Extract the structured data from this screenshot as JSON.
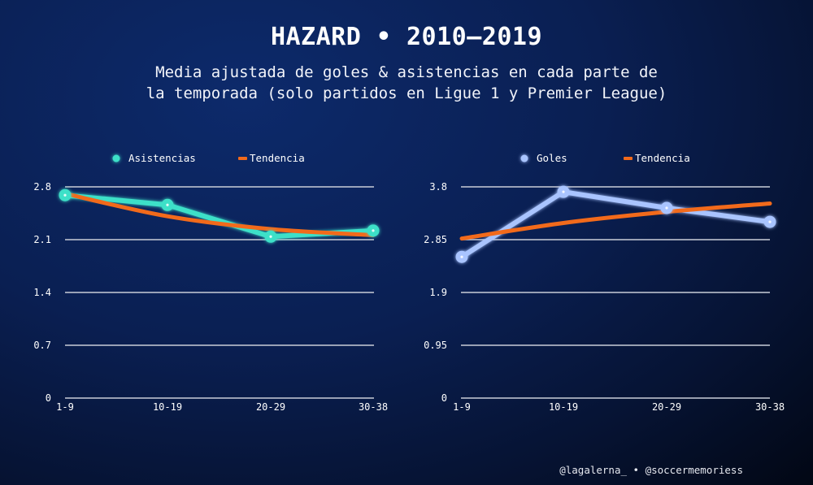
{
  "header": {
    "title": "HAZARD • 2010–2019",
    "subtitle_line1": "Media ajustada de goles & asistencias en cada parte de",
    "subtitle_line2": "la temporada (solo partidos en Ligue 1 y Premier League)"
  },
  "footer": {
    "credit": "@lagalerna_ • @soccermemoriess"
  },
  "colors": {
    "asistencias": "#3ee0c8",
    "goles": "#a9c4ff",
    "tendencia": "#f26a1b",
    "grid": "#c9cdd8"
  },
  "chart_data": [
    {
      "type": "line",
      "title": "",
      "xlabel": "",
      "ylabel": "",
      "categories": [
        "1-9",
        "10-19",
        "20-29",
        "30-38"
      ],
      "yticks": [
        0,
        0.7,
        1.4,
        2.1,
        2.8
      ],
      "ytick_labels": [
        "0",
        "0.7",
        "1.4",
        "2.1",
        "2.8"
      ],
      "ylim": [
        0,
        2.8
      ],
      "grid": true,
      "legend_position": "top-center",
      "legend": [
        "Asistencias",
        "Tendencia"
      ],
      "series": [
        {
          "name": "Asistencias",
          "values": [
            2.69,
            2.56,
            2.14,
            2.22
          ],
          "markers": true
        },
        {
          "name": "Tendencia",
          "values": [
            2.71,
            2.41,
            2.24,
            2.16
          ],
          "markers": false,
          "smooth": true
        }
      ]
    },
    {
      "type": "line",
      "title": "",
      "xlabel": "",
      "ylabel": "",
      "categories": [
        "1-9",
        "10-19",
        "20-29",
        "30-38"
      ],
      "yticks": [
        0,
        0.95,
        1.9,
        2.85,
        3.8
      ],
      "ytick_labels": [
        "0",
        "0.95",
        "1.9",
        "2.85",
        "3.8"
      ],
      "ylim": [
        0,
        3.8
      ],
      "grid": true,
      "legend_position": "top-center",
      "legend": [
        "Goles",
        "Tendencia"
      ],
      "series": [
        {
          "name": "Goles",
          "values": [
            2.54,
            3.71,
            3.42,
            3.17
          ],
          "markers": true
        },
        {
          "name": "Tendencia",
          "values": [
            2.87,
            3.15,
            3.35,
            3.5
          ],
          "markers": false,
          "smooth": true
        }
      ]
    }
  ]
}
